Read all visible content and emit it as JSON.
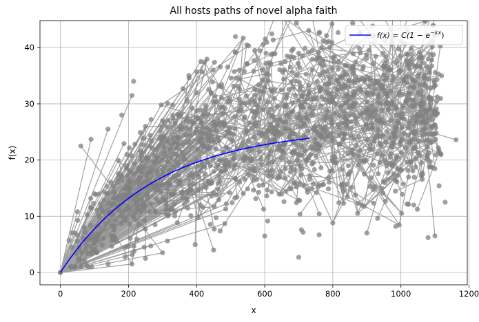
{
  "chart_data": {
    "type": "line",
    "title": "All hosts paths of novel alpha faith",
    "xlabel": "x",
    "ylabel": "f(x)",
    "xlim": [
      -60,
      1195
    ],
    "ylim": [
      -2.2,
      44.8
    ],
    "xticks": [
      0,
      200,
      400,
      600,
      800,
      1000,
      1200
    ],
    "yticks": [
      0,
      10,
      20,
      30,
      40
    ],
    "grid": true,
    "legend_position": "top-right",
    "colors": {
      "paths": "#808080",
      "fit": "#0000ff",
      "grid": "#b0b0b0"
    },
    "paths_series": {
      "name": "",
      "marker": "circle",
      "start": [
        0,
        0
      ],
      "sample_points": [
        [
          50,
          10.8
        ],
        [
          60,
          22.5
        ],
        [
          90,
          23.7
        ],
        [
          100,
          14
        ],
        [
          140,
          25.5
        ],
        [
          180,
          28
        ],
        [
          210,
          31.5
        ],
        [
          215,
          34
        ],
        [
          250,
          26
        ],
        [
          300,
          27
        ],
        [
          330,
          29.8
        ],
        [
          400,
          32
        ],
        [
          470,
          36.6
        ],
        [
          600,
          33
        ],
        [
          660,
          37.5
        ],
        [
          700,
          39
        ],
        [
          760,
          42.6
        ],
        [
          800,
          38.2
        ],
        [
          860,
          38.9
        ],
        [
          950,
          36.5
        ],
        [
          1020,
          37
        ],
        [
          1050,
          32
        ],
        [
          1100,
          28.5
        ],
        [
          1162,
          23.6
        ],
        [
          1130,
          12.5
        ],
        [
          1100,
          6.5
        ],
        [
          1080,
          6.2
        ],
        [
          985,
          8.2
        ],
        [
          900,
          7
        ],
        [
          800,
          8.8
        ],
        [
          760,
          6.7
        ],
        [
          700,
          2.7
        ],
        [
          600,
          6.5
        ],
        [
          450,
          4
        ],
        [
          300,
          3.5
        ],
        [
          250,
          2.5
        ],
        [
          210,
          1.5
        ],
        [
          140,
          1.5
        ],
        [
          100,
          4
        ],
        [
          70,
          8
        ]
      ]
    },
    "fit_series": {
      "name": "$f(x) = C(1 - e^{-kx})$",
      "label_text": "f(x) = C(1 − e",
      "label_sup": "−kx",
      "label_tail": ")",
      "C": 25.7,
      "k": 0.0036,
      "x_range": [
        0,
        730
      ]
    }
  }
}
